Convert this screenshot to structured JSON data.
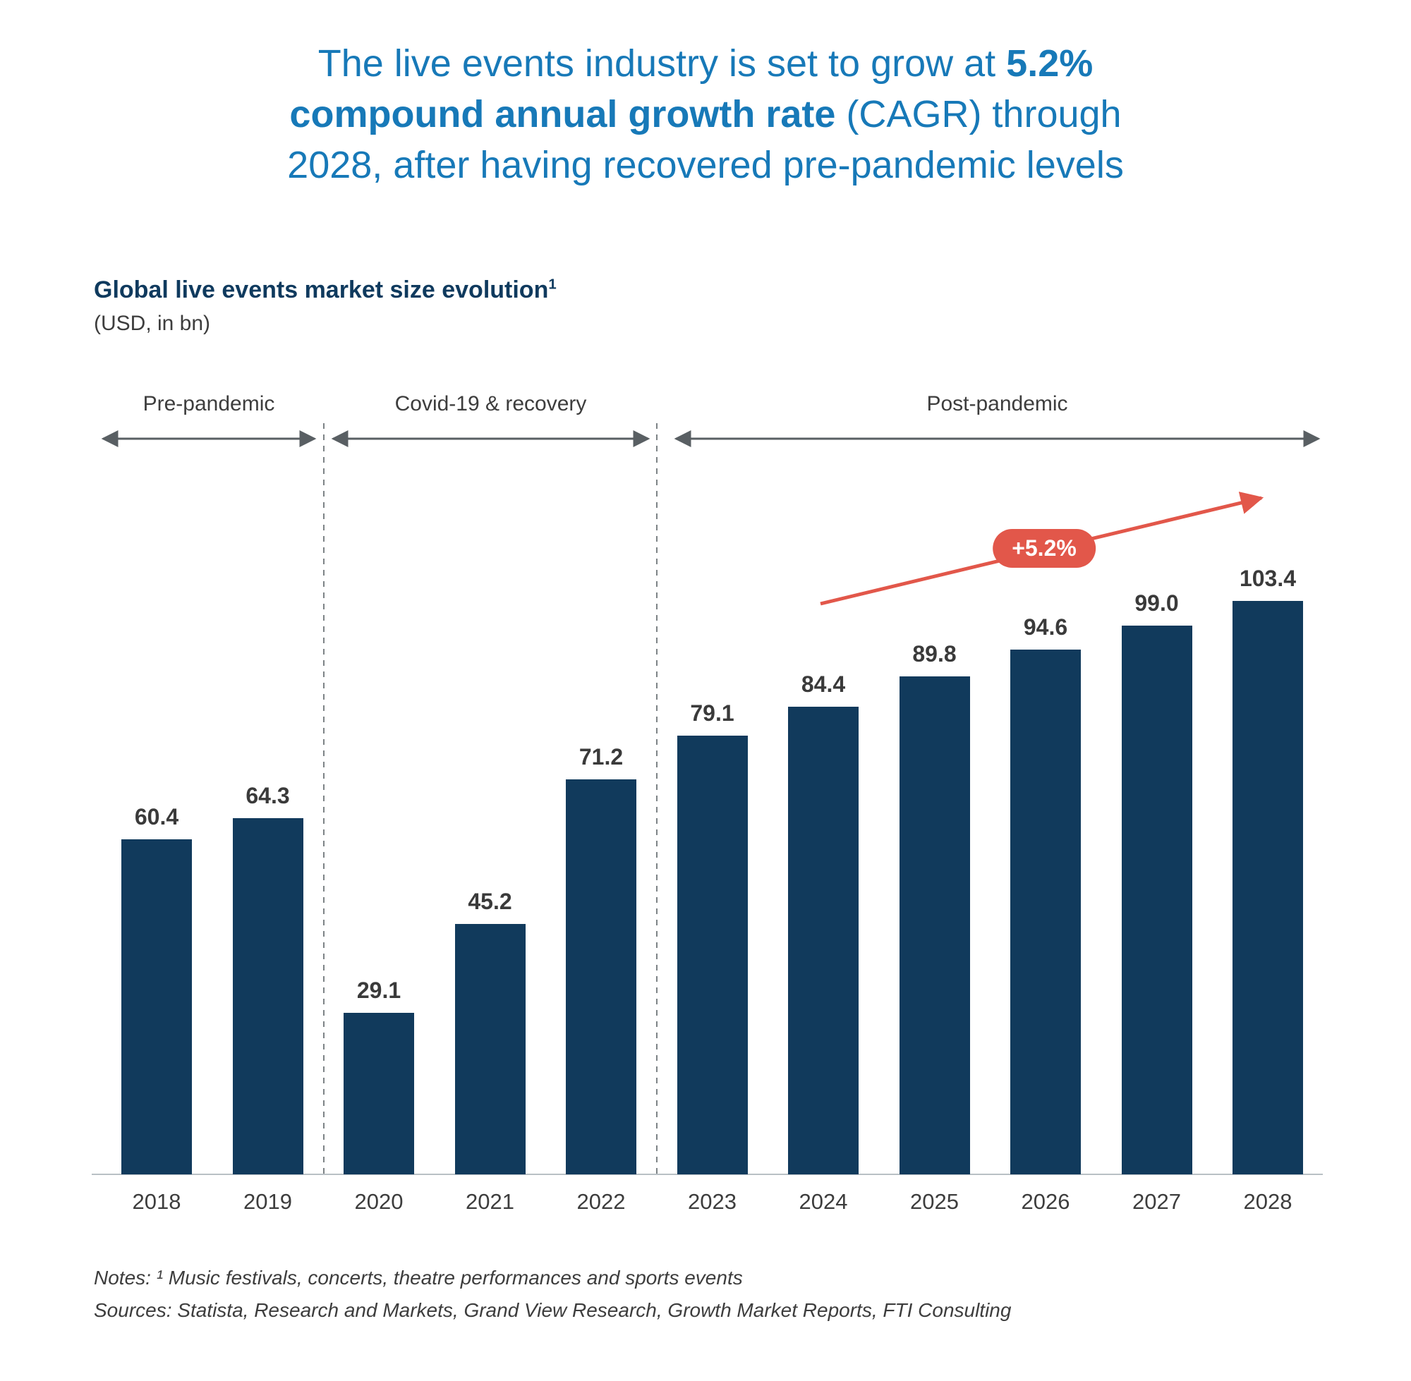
{
  "title": {
    "lines": [
      [
        {
          "t": "The live events industry is set to grow at ",
          "b": false
        },
        {
          "t": "5.2%",
          "b": true
        }
      ],
      [
        {
          "t": "compound annual growth rate",
          "b": true
        },
        {
          "t": " (CAGR) through",
          "b": false
        }
      ],
      [
        {
          "t": "2028, after having recovered pre-pandemic levels",
          "b": false
        }
      ]
    ],
    "color": "#1779b8"
  },
  "chart": {
    "heading": "Global live events market size evolution",
    "heading_sup": "1",
    "subtitle": "(USD, in bn)",
    "periods": [
      {
        "label": "Pre-pandemic",
        "from_year": "2018",
        "to_year": "2019"
      },
      {
        "label": "Covid-19 & recovery",
        "from_year": "2020",
        "to_year": "2022"
      },
      {
        "label": "Post-pandemic",
        "from_year": "2023",
        "to_year": "2028"
      }
    ],
    "cagr_badge": "+5.2%"
  },
  "chart_data": {
    "type": "bar",
    "title": "Global live events market size evolution",
    "unit": "USD, in bn",
    "categories": [
      "2018",
      "2019",
      "2020",
      "2021",
      "2022",
      "2023",
      "2024",
      "2025",
      "2026",
      "2027",
      "2028"
    ],
    "values": [
      60.4,
      64.3,
      29.1,
      45.2,
      71.2,
      79.1,
      84.4,
      89.8,
      94.6,
      99.0,
      103.4
    ],
    "labels": [
      "60.4",
      "64.3",
      "29.1",
      "45.2",
      "71.2",
      "79.1",
      "84.4",
      "89.8",
      "94.6",
      "99.0",
      "103.4"
    ],
    "xlabel": "",
    "ylabel": "",
    "ylim": [
      0,
      110
    ],
    "grid": false,
    "legend": "none",
    "bar_color": "#113a5c",
    "annotation": {
      "label": "+5.2%",
      "color": "#e2574a",
      "applies_to": "2024-2028 trend"
    }
  },
  "footnotes": {
    "notes": "Notes: ¹ Music festivals, concerts, theatre performances and sports events",
    "sources": "Sources: Statista, Research and Markets, Grand View Research, Growth Market Reports, FTI Consulting"
  }
}
